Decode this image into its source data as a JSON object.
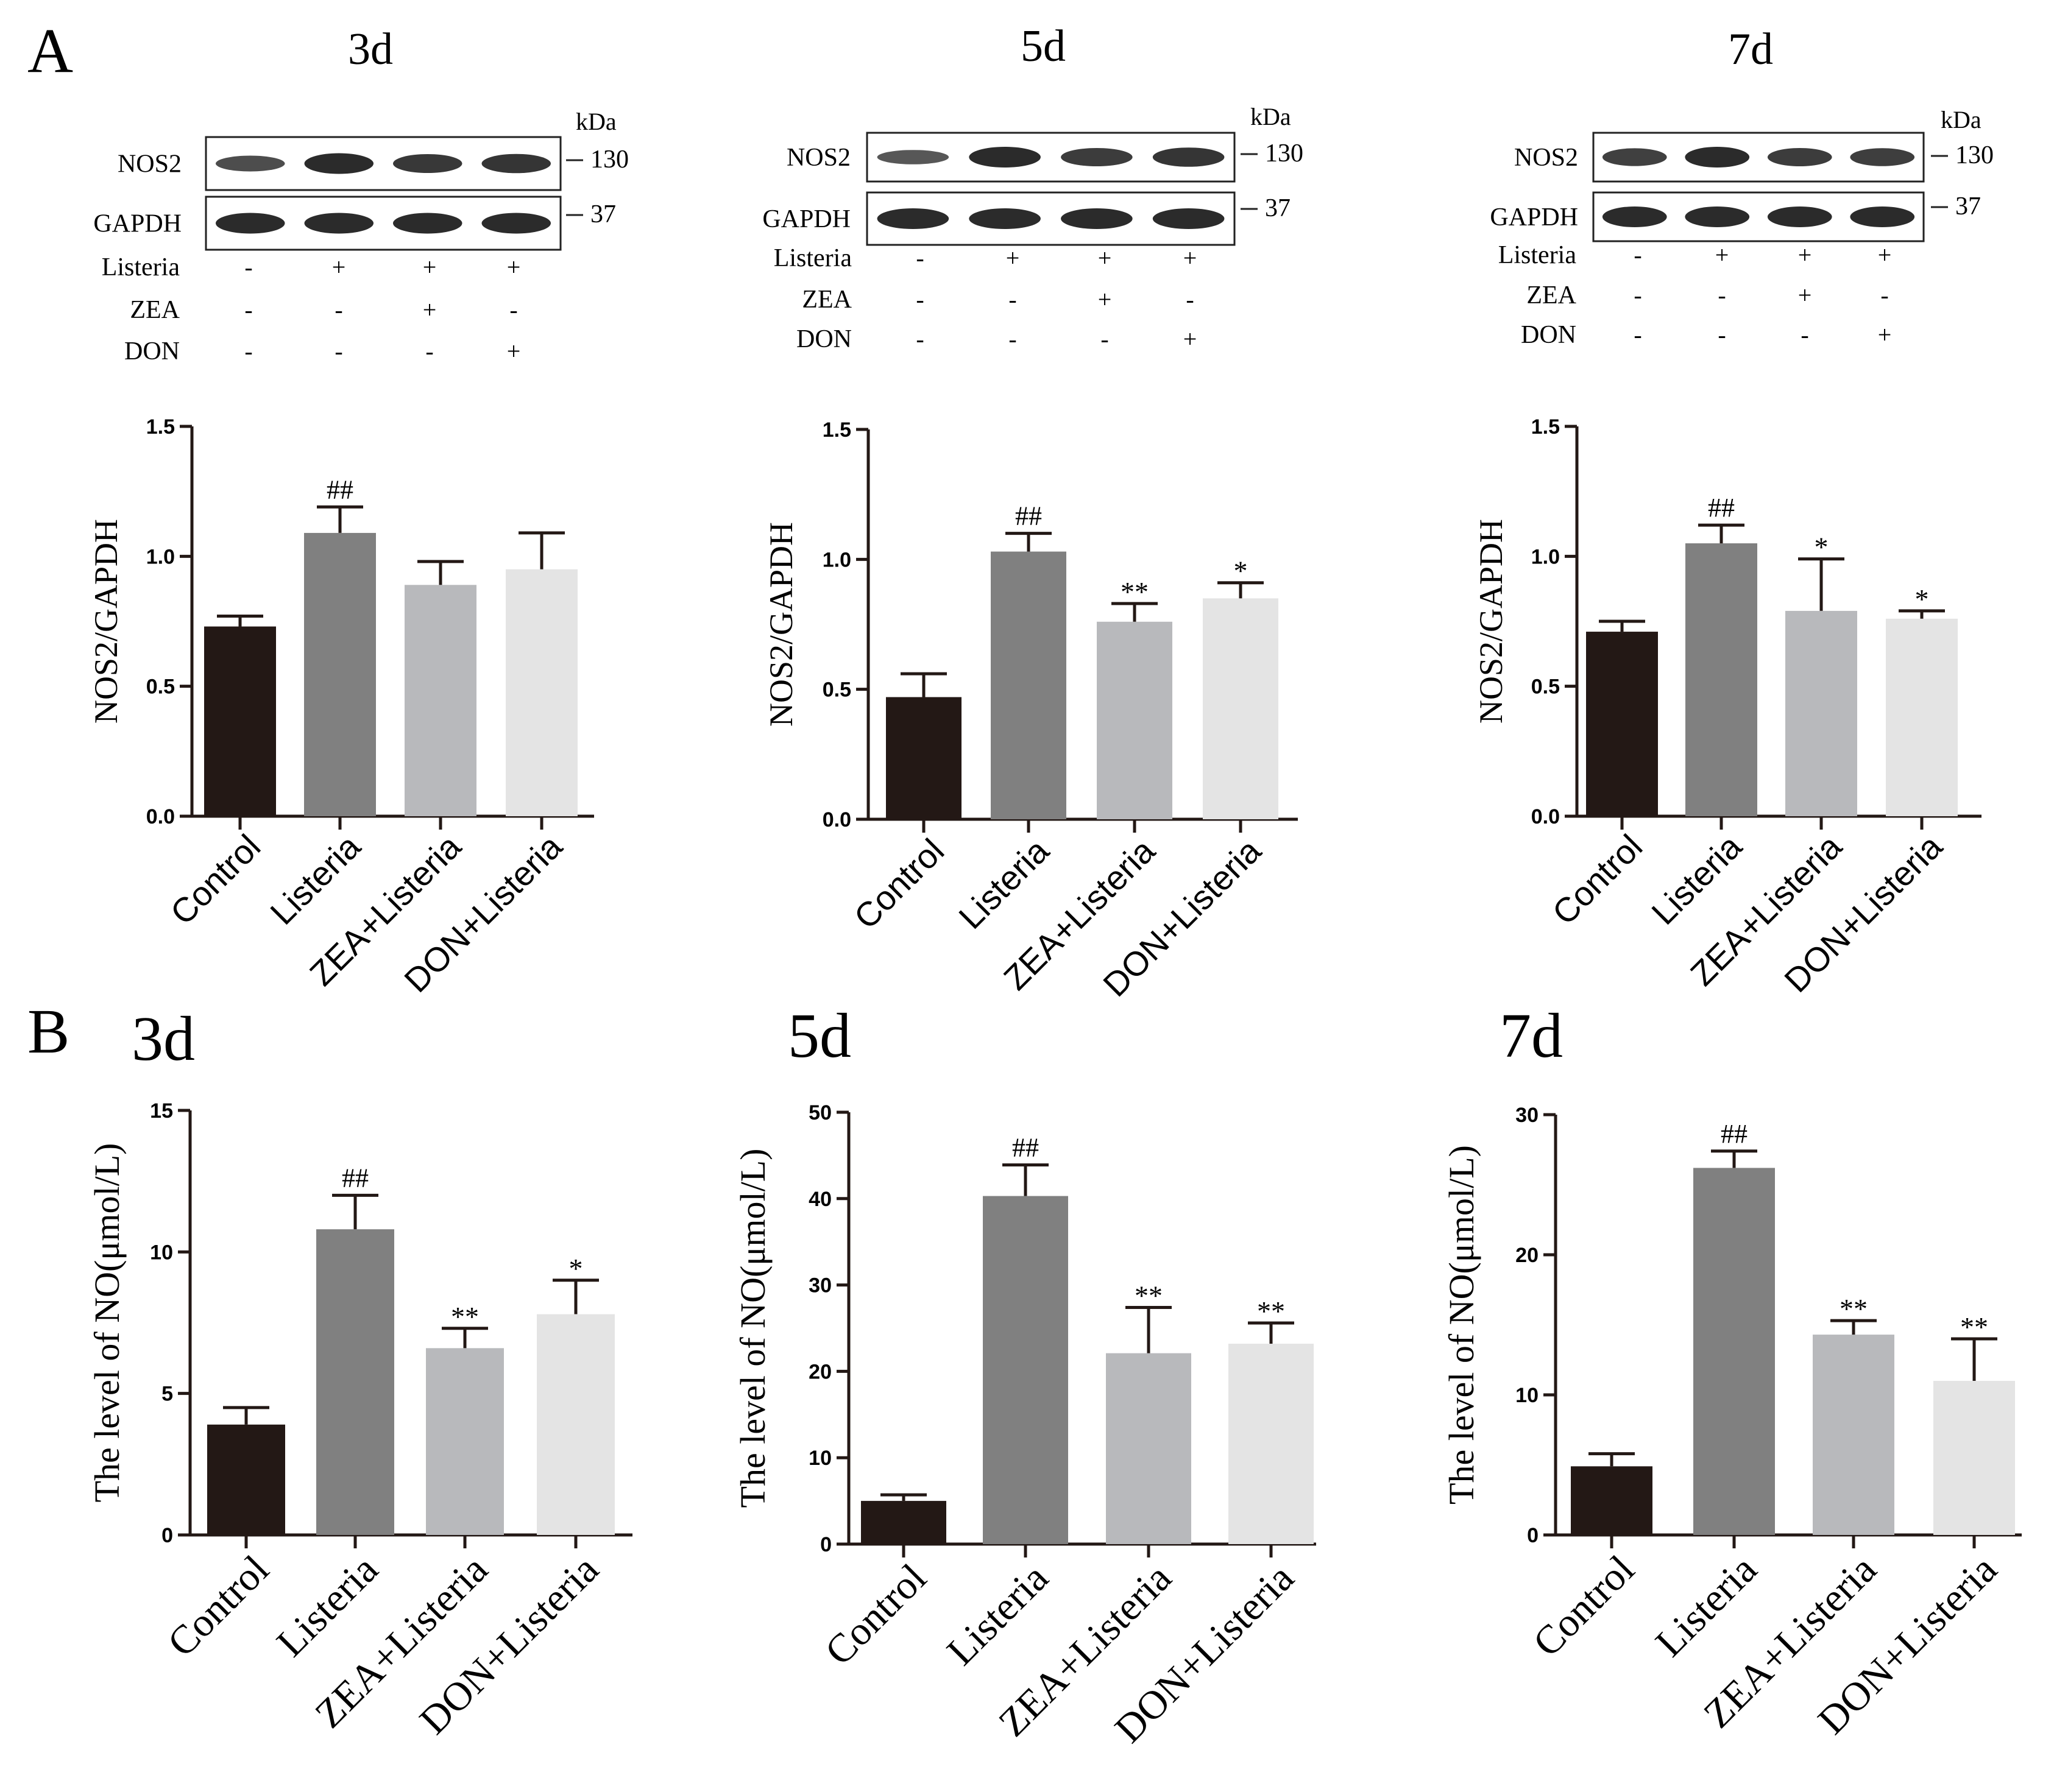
{
  "figure": {
    "panel_labels": [
      "A",
      "B"
    ],
    "blot": {
      "proteins": [
        "NOS2",
        "GAPDH"
      ],
      "unit": "kDa",
      "markers": [
        "130",
        "37"
      ],
      "treatment_rows": [
        "Listeria",
        "ZEA",
        "DON"
      ],
      "signs": [
        [
          "-",
          "+",
          "+",
          "+"
        ],
        [
          "-",
          "-",
          "+",
          "-"
        ],
        [
          "-",
          "-",
          "-",
          "+"
        ]
      ]
    },
    "colors": [
      "#231815",
      "#808080",
      "#b8b9bc",
      "#e4e4e4"
    ]
  },
  "chart_data": [
    {
      "id": "A-3d",
      "type": "bar",
      "panel": "A",
      "title": "3d",
      "ylabel": "NOS2/GAPDH",
      "ylim": [
        0,
        1.5
      ],
      "ticks": [
        "0.0",
        "0.5",
        "1.0",
        "1.5"
      ],
      "categories": [
        "Control",
        "Listeria",
        "ZEA+Listeria",
        "DON+Listeria"
      ],
      "values": [
        0.73,
        1.09,
        0.89,
        0.95
      ],
      "errors": [
        0.04,
        0.1,
        0.09,
        0.14
      ],
      "annotations": [
        "",
        "##",
        "",
        ""
      ],
      "blot_intensity": [
        [
          0.5,
          1,
          0.82,
          0.85
        ],
        [
          1,
          1,
          1,
          1
        ]
      ]
    },
    {
      "id": "A-5d",
      "type": "bar",
      "panel": "A",
      "title": "5d",
      "ylabel": "NOS2/GAPDH",
      "ylim": [
        0,
        1.5
      ],
      "ticks": [
        "0.0",
        "0.5",
        "1.0",
        "1.5"
      ],
      "categories": [
        "Control",
        "Listeria",
        "ZEA+Listeria",
        "DON+Listeria"
      ],
      "values": [
        0.47,
        1.03,
        0.76,
        0.85
      ],
      "errors": [
        0.09,
        0.07,
        0.07,
        0.06
      ],
      "annotations": [
        "",
        "##",
        "**",
        "*"
      ],
      "blot_intensity": [
        [
          0.35,
          1,
          0.75,
          0.85
        ],
        [
          1,
          1,
          1,
          1
        ]
      ]
    },
    {
      "id": "A-7d",
      "type": "bar",
      "panel": "A",
      "title": "7d",
      "ylabel": "NOS2/GAPDH",
      "ylim": [
        0,
        1.5
      ],
      "ticks": [
        "0.0",
        "0.5",
        "1.0",
        "1.5"
      ],
      "categories": [
        "Control",
        "Listeria",
        "ZEA+Listeria",
        "DON+Listeria"
      ],
      "values": [
        0.71,
        1.05,
        0.79,
        0.76
      ],
      "errors": [
        0.04,
        0.07,
        0.2,
        0.03
      ],
      "annotations": [
        "",
        "##",
        "*",
        "*"
      ],
      "blot_intensity": [
        [
          0.7,
          1,
          0.75,
          0.72
        ],
        [
          1,
          1,
          1,
          1
        ]
      ]
    },
    {
      "id": "B-3d",
      "type": "bar",
      "panel": "B",
      "title": "3d",
      "ylabel": "The level of NO(μmol/L)",
      "ylim": [
        0,
        15
      ],
      "ticks": [
        "0",
        "5",
        "10",
        "15"
      ],
      "categories": [
        "Control",
        "Listeria",
        "ZEA+Listeria",
        "DON+Listeria"
      ],
      "values": [
        3.9,
        10.8,
        6.6,
        7.8
      ],
      "errors": [
        0.6,
        1.2,
        0.7,
        1.2
      ],
      "annotations": [
        "",
        "##",
        "**",
        "*"
      ]
    },
    {
      "id": "B-5d",
      "type": "bar",
      "panel": "B",
      "title": "5d",
      "ylabel": "The level of NO(μmol/L)",
      "ylim": [
        0,
        50
      ],
      "ticks": [
        "0",
        "10",
        "20",
        "30",
        "40",
        "50"
      ],
      "categories": [
        "Control",
        "Listeria",
        "ZEA+Listeria",
        "DON+Listeria"
      ],
      "values": [
        5.0,
        40.3,
        22.1,
        23.2
      ],
      "errors": [
        0.7,
        3.6,
        5.3,
        2.4
      ],
      "annotations": [
        "",
        "##",
        "**",
        "**"
      ]
    },
    {
      "id": "B-7d",
      "type": "bar",
      "panel": "B",
      "title": "7d",
      "ylabel": "The level of NO(μmol/L)",
      "ylim": [
        0,
        30
      ],
      "ticks": [
        "0",
        "10",
        "20",
        "30"
      ],
      "categories": [
        "Control",
        "Listeria",
        "ZEA+Listeria",
        "DON+Listeria"
      ],
      "values": [
        4.9,
        26.2,
        14.3,
        11.0
      ],
      "errors": [
        0.9,
        1.2,
        1.0,
        3.0
      ],
      "annotations": [
        "",
        "##",
        "**",
        "**"
      ]
    }
  ]
}
